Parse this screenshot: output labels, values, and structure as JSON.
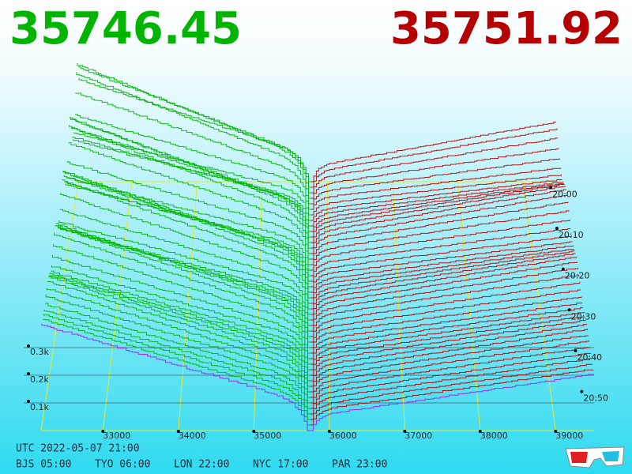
{
  "chart_data": {
    "type": "depth3d",
    "bid_price": 35746.45,
    "ask_price": 35751.92,
    "xlim": [
      32180,
      39510
    ],
    "xticks": [
      33000,
      34000,
      35000,
      36000,
      37000,
      38000,
      39000
    ],
    "zlim": [
      0,
      450
    ],
    "zticks": [
      {
        "value": 100,
        "label": "0.1k"
      },
      {
        "value": 200,
        "label": "0.2k"
      },
      {
        "value": 300,
        "label": "0.3k"
      }
    ],
    "time_ticks": [
      "20:00",
      "20:10",
      "20:20",
      "20:30",
      "20:40",
      "20:50"
    ],
    "bid_color": "#00b400",
    "ask_color": "#b40000",
    "latest_color": "#a020f0",
    "grid_color": "#e8e830",
    "utc_label": "UTC 2022-05-07 21:00",
    "city_times": [
      "BJS 05:00",
      "TYO 06:00",
      "LON 22:00",
      "NYC 17:00",
      "PAR 23:00"
    ]
  }
}
